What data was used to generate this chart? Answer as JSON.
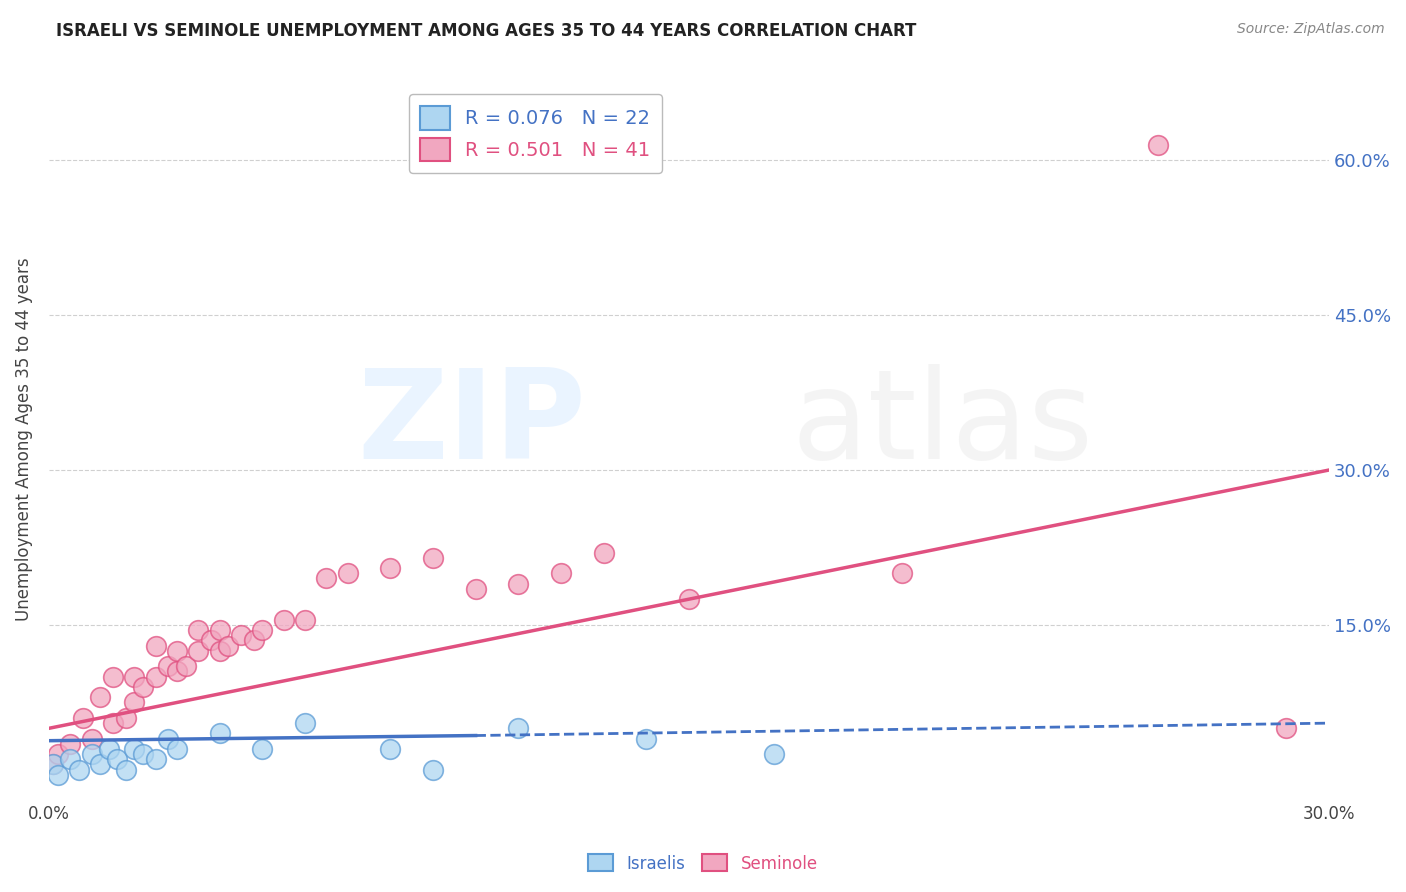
{
  "title": "ISRAELI VS SEMINOLE UNEMPLOYMENT AMONG AGES 35 TO 44 YEARS CORRELATION CHART",
  "source": "Source: ZipAtlas.com",
  "ylabel": "Unemployment Among Ages 35 to 44 years",
  "xlim": [
    0.0,
    0.3
  ],
  "ylim": [
    -0.02,
    0.68
  ],
  "ytick_labels_right": [
    "15.0%",
    "30.0%",
    "45.0%",
    "60.0%"
  ],
  "ytick_values_right": [
    0.15,
    0.3,
    0.45,
    0.6
  ],
  "israelis_color": "#AED6F1",
  "seminole_color": "#F1A7C0",
  "israelis_edge_color": "#5B9BD5",
  "seminole_edge_color": "#E05080",
  "israelis_line_color": "#4472C4",
  "seminole_line_color": "#E05080",
  "R_israelis": 0.076,
  "N_israelis": 22,
  "R_seminole": 0.501,
  "N_seminole": 41,
  "grid_color": "#D0D0D0",
  "background_color": "#FFFFFF",
  "israelis_x": [
    0.001,
    0.002,
    0.005,
    0.007,
    0.01,
    0.012,
    0.014,
    0.016,
    0.018,
    0.02,
    0.022,
    0.025,
    0.028,
    0.03,
    0.04,
    0.05,
    0.06,
    0.08,
    0.09,
    0.11,
    0.14,
    0.17
  ],
  "israelis_y": [
    0.015,
    0.005,
    0.02,
    0.01,
    0.025,
    0.015,
    0.03,
    0.02,
    0.01,
    0.03,
    0.025,
    0.02,
    0.04,
    0.03,
    0.045,
    0.03,
    0.055,
    0.03,
    0.01,
    0.05,
    0.04,
    0.025
  ],
  "seminole_x": [
    0.001,
    0.002,
    0.005,
    0.008,
    0.01,
    0.012,
    0.015,
    0.015,
    0.018,
    0.02,
    0.02,
    0.022,
    0.025,
    0.025,
    0.028,
    0.03,
    0.03,
    0.032,
    0.035,
    0.035,
    0.038,
    0.04,
    0.04,
    0.042,
    0.045,
    0.048,
    0.05,
    0.055,
    0.06,
    0.065,
    0.07,
    0.08,
    0.09,
    0.1,
    0.11,
    0.12,
    0.13,
    0.15,
    0.2,
    0.26,
    0.29
  ],
  "seminole_y": [
    0.015,
    0.025,
    0.035,
    0.06,
    0.04,
    0.08,
    0.055,
    0.1,
    0.06,
    0.075,
    0.1,
    0.09,
    0.1,
    0.13,
    0.11,
    0.105,
    0.125,
    0.11,
    0.125,
    0.145,
    0.135,
    0.125,
    0.145,
    0.13,
    0.14,
    0.135,
    0.145,
    0.155,
    0.155,
    0.195,
    0.2,
    0.205,
    0.215,
    0.185,
    0.19,
    0.2,
    0.22,
    0.175,
    0.2,
    0.615,
    0.05
  ]
}
